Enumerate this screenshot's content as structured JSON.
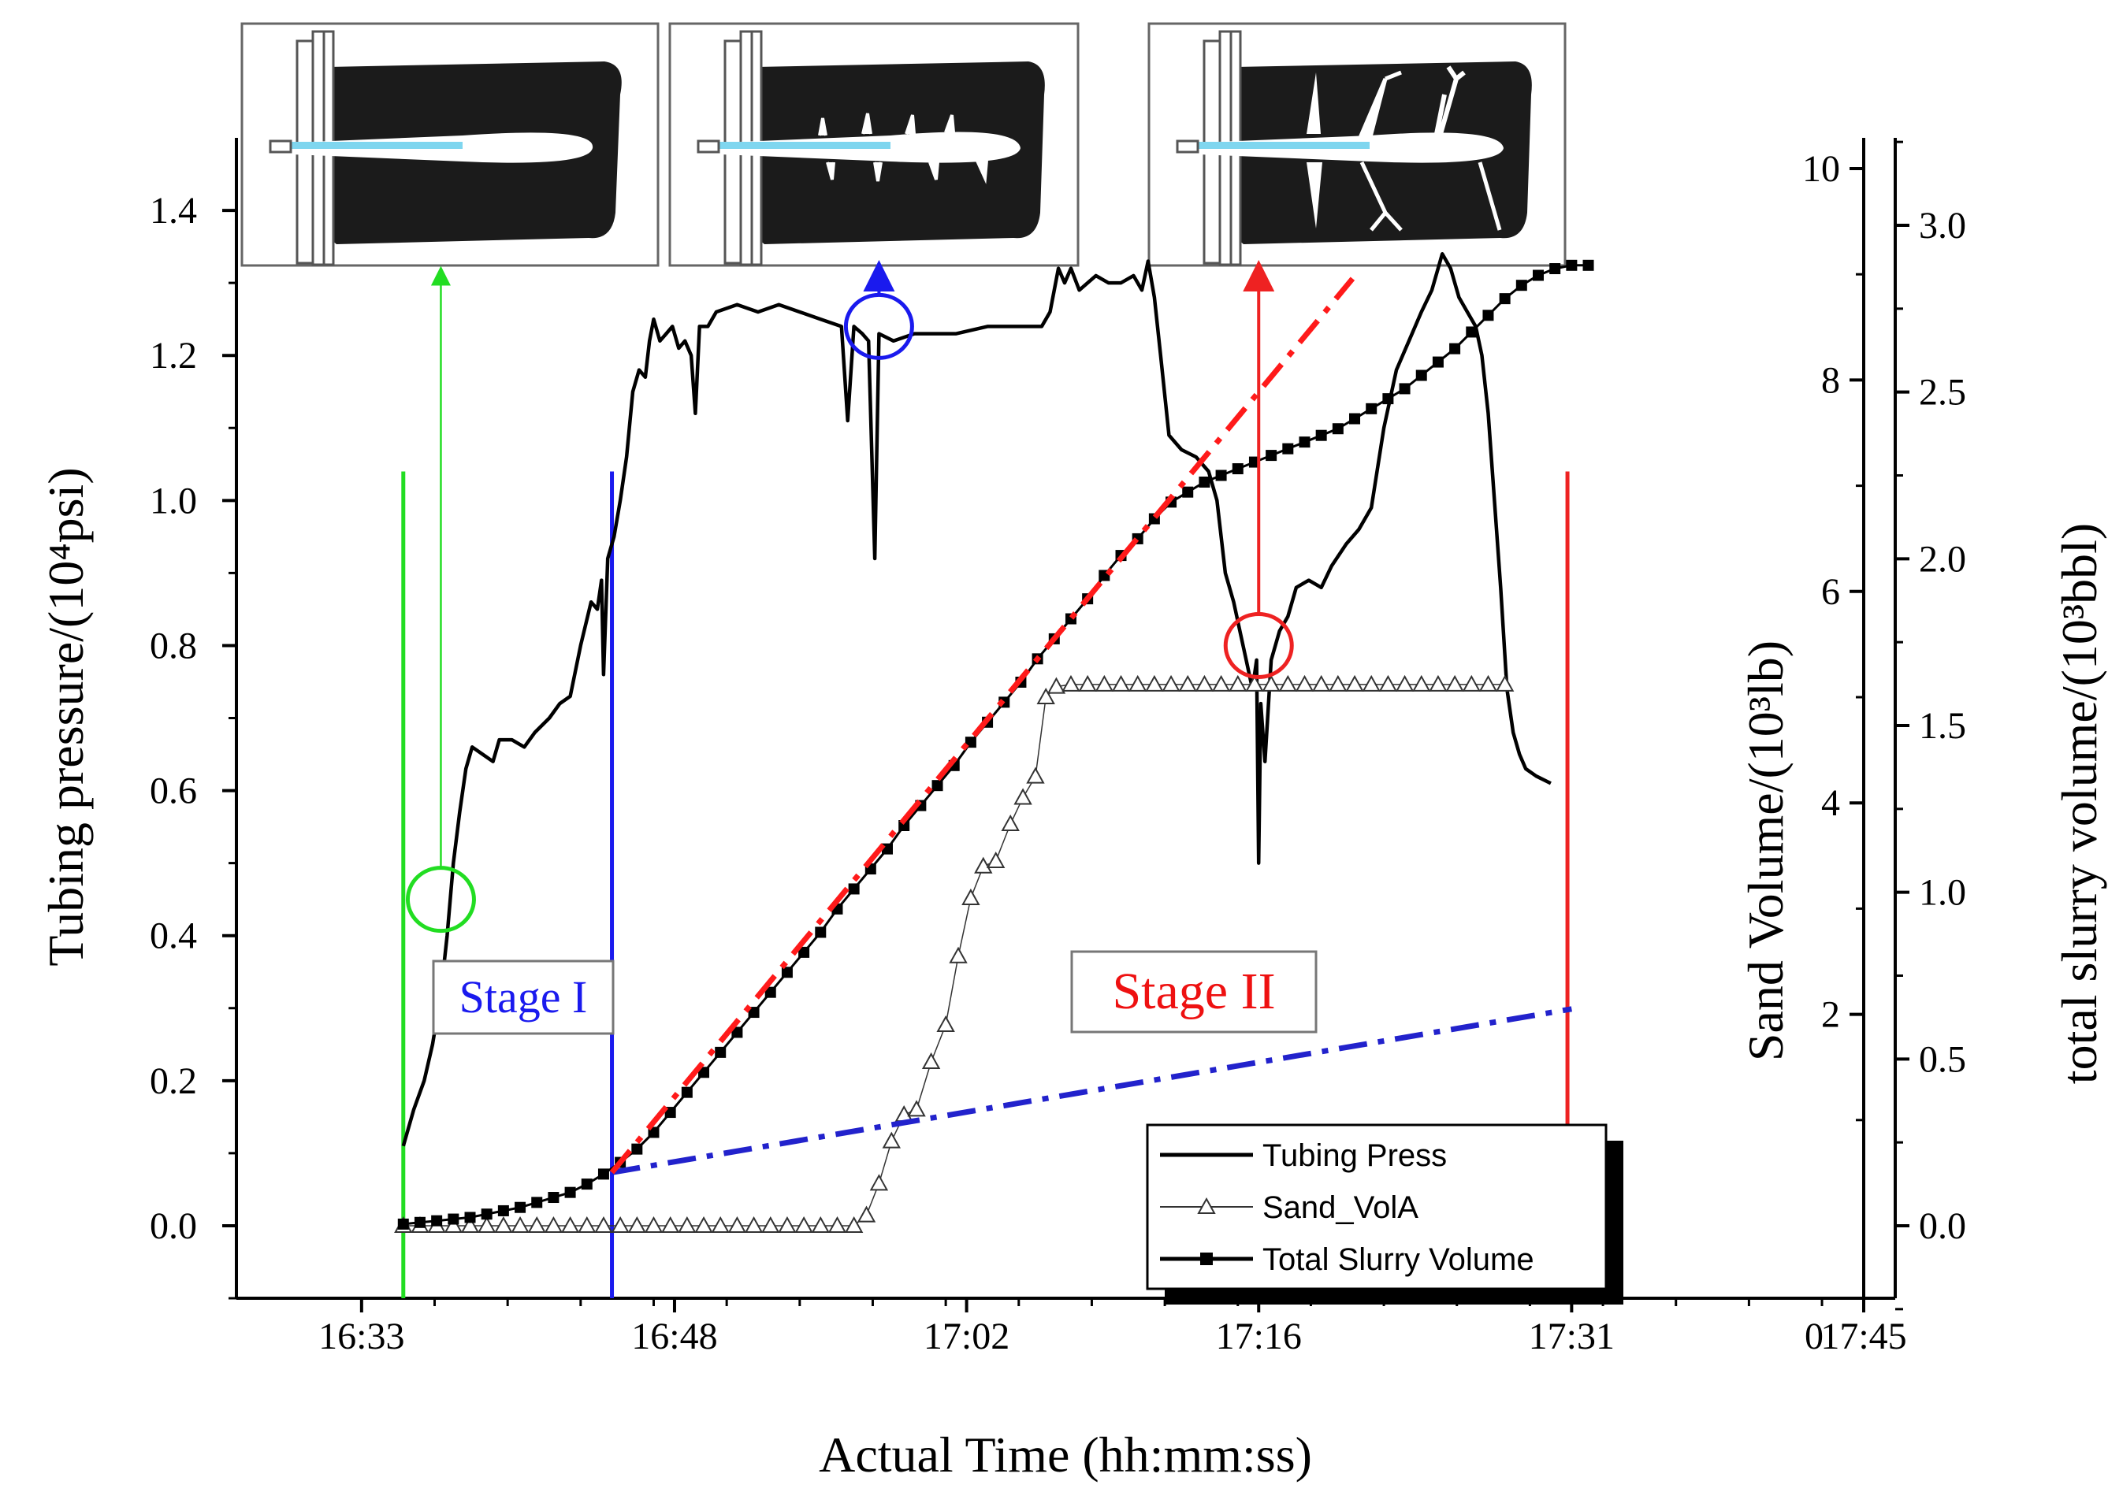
{
  "chart_data": {
    "type": "line",
    "title": "",
    "xlabel": "Actual Time (hh:mm:ss)",
    "ylabel_left": "Tubing pressure/(10⁴psi)",
    "ylabel_right_1": "Sand Volume/(10³lb)",
    "ylabel_right_2": "total slurry volume/(10³bbl)",
    "x_range_minutes": [
      1039,
      1065
    ],
    "x_ticks": [
      {
        "label": "16:33",
        "minute": 993
      },
      {
        "label": "16:48",
        "minute": 1008
      },
      {
        "label": "17:02",
        "minute": 1022
      },
      {
        "label": "17:16",
        "minute": 1036
      },
      {
        "label": "17:31",
        "minute": 1051
      },
      {
        "label": "17:45",
        "minute": 1065
      }
    ],
    "x_origin_label": "0",
    "ylim_left": [
      -0.1,
      1.5
    ],
    "yticks_left": [
      "0.0",
      "0.2",
      "0.4",
      "0.6",
      "0.8",
      "1.0",
      "1.2",
      "1.4"
    ],
    "ylim_sand": [
      0,
      10
    ],
    "yticks_sand": [
      "2",
      "4",
      "6",
      "8",
      "10"
    ],
    "ylim_slurry": [
      -0.15,
      3.25
    ],
    "yticks_slurry": [
      "0.0",
      "0.5",
      "1.0",
      "1.5",
      "2.0",
      "2.5",
      "3.0"
    ],
    "legend": {
      "position": "bottom-right",
      "entries": [
        "Tubing Press",
        "Sand_VolA",
        "Total Slurry Volume"
      ]
    },
    "series": [
      {
        "name": "Tubing Press",
        "axis": "left",
        "color": "#000000",
        "points": [
          [
            995,
            0.11
          ],
          [
            995.5,
            0.16
          ],
          [
            996,
            0.2
          ],
          [
            996.4,
            0.25
          ],
          [
            996.8,
            0.32
          ],
          [
            997.1,
            0.4
          ],
          [
            997.4,
            0.5
          ],
          [
            997.7,
            0.57
          ],
          [
            998.0,
            0.63
          ],
          [
            998.3,
            0.66
          ],
          [
            998.8,
            0.65
          ],
          [
            999.3,
            0.64
          ],
          [
            999.6,
            0.67
          ],
          [
            1000.2,
            0.67
          ],
          [
            1000.8,
            0.66
          ],
          [
            1001.3,
            0.68
          ],
          [
            1002,
            0.7
          ],
          [
            1002.5,
            0.72
          ],
          [
            1003,
            0.73
          ],
          [
            1003.5,
            0.8
          ],
          [
            1004,
            0.86
          ],
          [
            1004.3,
            0.85
          ],
          [
            1004.5,
            0.89
          ],
          [
            1004.6,
            0.76
          ],
          [
            1004.8,
            0.92
          ],
          [
            1005.1,
            0.95
          ],
          [
            1005.4,
            1.0
          ],
          [
            1005.7,
            1.06
          ],
          [
            1006.0,
            1.15
          ],
          [
            1006.3,
            1.18
          ],
          [
            1006.6,
            1.17
          ],
          [
            1006.8,
            1.22
          ],
          [
            1007.0,
            1.25
          ],
          [
            1007.3,
            1.22
          ],
          [
            1007.6,
            1.23
          ],
          [
            1007.9,
            1.24
          ],
          [
            1008.2,
            1.21
          ],
          [
            1008.5,
            1.22
          ],
          [
            1008.8,
            1.2
          ],
          [
            1009.0,
            1.12
          ],
          [
            1009.2,
            1.24
          ],
          [
            1009.6,
            1.24
          ],
          [
            1010,
            1.26
          ],
          [
            1011,
            1.27
          ],
          [
            1012,
            1.26
          ],
          [
            1013,
            1.27
          ],
          [
            1014,
            1.26
          ],
          [
            1015,
            1.25
          ],
          [
            1016,
            1.24
          ],
          [
            1016.3,
            1.11
          ],
          [
            1016.6,
            1.24
          ],
          [
            1017,
            1.23
          ],
          [
            1017.3,
            1.22
          ],
          [
            1017.6,
            0.92
          ],
          [
            1017.8,
            1.23
          ],
          [
            1018.5,
            1.22
          ],
          [
            1019.5,
            1.23
          ],
          [
            1020.5,
            1.23
          ],
          [
            1021.5,
            1.23
          ],
          [
            1023,
            1.24
          ],
          [
            1024.5,
            1.24
          ],
          [
            1025.6,
            1.24
          ],
          [
            1026.0,
            1.26
          ],
          [
            1026.4,
            1.32
          ],
          [
            1026.7,
            1.3
          ],
          [
            1027.0,
            1.32
          ],
          [
            1027.4,
            1.29
          ],
          [
            1027.8,
            1.3
          ],
          [
            1028.2,
            1.31
          ],
          [
            1028.8,
            1.3
          ],
          [
            1029.4,
            1.3
          ],
          [
            1030.0,
            1.31
          ],
          [
            1030.4,
            1.29
          ],
          [
            1030.7,
            1.33
          ],
          [
            1031.0,
            1.28
          ],
          [
            1031.3,
            1.2
          ],
          [
            1031.7,
            1.09
          ],
          [
            1032.3,
            1.07
          ],
          [
            1033,
            1.06
          ],
          [
            1033.6,
            1.04
          ],
          [
            1034.0,
            1.0
          ],
          [
            1034.4,
            0.9
          ],
          [
            1034.8,
            0.86
          ],
          [
            1035.1,
            0.82
          ],
          [
            1035.4,
            0.78
          ],
          [
            1035.7,
            0.74
          ],
          [
            1035.9,
            0.78
          ],
          [
            1036.0,
            0.5
          ],
          [
            1036.1,
            0.72
          ],
          [
            1036.3,
            0.64
          ],
          [
            1036.6,
            0.78
          ],
          [
            1037,
            0.82
          ],
          [
            1037.4,
            0.84
          ],
          [
            1037.8,
            0.88
          ],
          [
            1038.4,
            0.89
          ],
          [
            1039.0,
            0.88
          ],
          [
            1039.5,
            0.91
          ],
          [
            1040.2,
            0.94
          ],
          [
            1040.8,
            0.96
          ],
          [
            1041.4,
            0.99
          ],
          [
            1042.0,
            1.1
          ],
          [
            1042.6,
            1.18
          ],
          [
            1043.2,
            1.22
          ],
          [
            1043.8,
            1.26
          ],
          [
            1044.3,
            1.29
          ],
          [
            1044.8,
            1.34
          ],
          [
            1045.2,
            1.32
          ],
          [
            1045.6,
            1.28
          ],
          [
            1046.0,
            1.26
          ],
          [
            1046.4,
            1.24
          ],
          [
            1046.7,
            1.2
          ],
          [
            1047.0,
            1.12
          ],
          [
            1047.3,
            1.0
          ],
          [
            1047.6,
            0.88
          ],
          [
            1047.9,
            0.74
          ],
          [
            1048.2,
            0.68
          ],
          [
            1048.5,
            0.65
          ],
          [
            1048.8,
            0.63
          ],
          [
            1049.3,
            0.62
          ],
          [
            1050,
            0.61
          ]
        ]
      },
      {
        "name": "Sand_VolA",
        "axis": "sand",
        "color": "#333333",
        "points": [
          [
            995,
            0
          ],
          [
            995.8,
            0
          ],
          [
            996.6,
            0
          ],
          [
            997.4,
            0
          ],
          [
            998.2,
            0
          ],
          [
            999,
            0
          ],
          [
            999.8,
            0
          ],
          [
            1000.6,
            0
          ],
          [
            1001.4,
            0
          ],
          [
            1002.2,
            0
          ],
          [
            1003,
            0
          ],
          [
            1003.8,
            0
          ],
          [
            1004.6,
            0
          ],
          [
            1005.4,
            0
          ],
          [
            1006.2,
            0
          ],
          [
            1007,
            0
          ],
          [
            1007.8,
            0
          ],
          [
            1008.6,
            0
          ],
          [
            1009.4,
            0
          ],
          [
            1010.2,
            0
          ],
          [
            1011,
            0
          ],
          [
            1011.8,
            0
          ],
          [
            1012.6,
            0
          ],
          [
            1013.4,
            0
          ],
          [
            1014.2,
            0
          ],
          [
            1015,
            0
          ],
          [
            1015.8,
            0
          ],
          [
            1016.6,
            0
          ],
          [
            1017.2,
            0.1
          ],
          [
            1017.8,
            0.4
          ],
          [
            1018.4,
            0.8
          ],
          [
            1019.0,
            1.05
          ],
          [
            1019.6,
            1.1
          ],
          [
            1020.3,
            1.55
          ],
          [
            1021.0,
            1.9
          ],
          [
            1021.6,
            2.55
          ],
          [
            1022.2,
            3.1
          ],
          [
            1022.8,
            3.4
          ],
          [
            1023.4,
            3.45
          ],
          [
            1024.1,
            3.8
          ],
          [
            1024.7,
            4.05
          ],
          [
            1025.3,
            4.25
          ],
          [
            1025.8,
            5.0
          ],
          [
            1026.3,
            5.1
          ],
          [
            1027.0,
            5.12
          ],
          [
            1027.8,
            5.12
          ],
          [
            1028.6,
            5.12
          ],
          [
            1029.4,
            5.12
          ],
          [
            1030.2,
            5.12
          ],
          [
            1031,
            5.12
          ],
          [
            1031.8,
            5.12
          ],
          [
            1032.6,
            5.12
          ],
          [
            1033.4,
            5.12
          ],
          [
            1034.2,
            5.12
          ],
          [
            1035,
            5.12
          ],
          [
            1035.8,
            5.12
          ],
          [
            1036.6,
            5.12
          ],
          [
            1037.4,
            5.12
          ],
          [
            1038.2,
            5.12
          ],
          [
            1039,
            5.12
          ],
          [
            1039.8,
            5.12
          ],
          [
            1040.6,
            5.12
          ],
          [
            1041.4,
            5.12
          ],
          [
            1042.2,
            5.12
          ],
          [
            1043,
            5.12
          ],
          [
            1043.8,
            5.12
          ],
          [
            1044.6,
            5.12
          ],
          [
            1045.4,
            5.12
          ],
          [
            1046.2,
            5.12
          ],
          [
            1047,
            5.12
          ],
          [
            1047.8,
            5.12
          ]
        ]
      },
      {
        "name": "Total Slurry Volume",
        "axis": "slurry",
        "color": "#000000",
        "points": [
          [
            995,
            0.005
          ],
          [
            995.8,
            0.01
          ],
          [
            996.6,
            0.015
          ],
          [
            997.4,
            0.02
          ],
          [
            998.2,
            0.025
          ],
          [
            999,
            0.035
          ],
          [
            999.8,
            0.045
          ],
          [
            1000.6,
            0.055
          ],
          [
            1001.4,
            0.07
          ],
          [
            1002.2,
            0.085
          ],
          [
            1003,
            0.1
          ],
          [
            1003.8,
            0.125
          ],
          [
            1004.6,
            0.155
          ],
          [
            1005.4,
            0.19
          ],
          [
            1006.2,
            0.23
          ],
          [
            1007,
            0.28
          ],
          [
            1007.8,
            0.34
          ],
          [
            1008.6,
            0.4
          ],
          [
            1009.4,
            0.46
          ],
          [
            1010.2,
            0.52
          ],
          [
            1011,
            0.58
          ],
          [
            1011.8,
            0.64
          ],
          [
            1012.6,
            0.7
          ],
          [
            1013.4,
            0.76
          ],
          [
            1014.2,
            0.82
          ],
          [
            1015,
            0.88
          ],
          [
            1015.8,
            0.95
          ],
          [
            1016.6,
            1.01
          ],
          [
            1017.4,
            1.07
          ],
          [
            1018.2,
            1.13
          ],
          [
            1019,
            1.2
          ],
          [
            1019.8,
            1.26
          ],
          [
            1020.6,
            1.32
          ],
          [
            1021.4,
            1.38
          ],
          [
            1022.2,
            1.45
          ],
          [
            1023,
            1.51
          ],
          [
            1023.8,
            1.57
          ],
          [
            1024.6,
            1.63
          ],
          [
            1025.4,
            1.7
          ],
          [
            1026.2,
            1.76
          ],
          [
            1027,
            1.82
          ],
          [
            1027.8,
            1.88
          ],
          [
            1028.6,
            1.95
          ],
          [
            1029.4,
            2.01
          ],
          [
            1030.2,
            2.06
          ],
          [
            1031,
            2.12
          ],
          [
            1031.8,
            2.17
          ],
          [
            1032.6,
            2.2
          ],
          [
            1033.4,
            2.23
          ],
          [
            1034.2,
            2.25
          ],
          [
            1035,
            2.27
          ],
          [
            1035.8,
            2.29
          ],
          [
            1036.6,
            2.31
          ],
          [
            1037.4,
            2.33
          ],
          [
            1038.2,
            2.35
          ],
          [
            1039,
            2.37
          ],
          [
            1039.8,
            2.39
          ],
          [
            1040.6,
            2.42
          ],
          [
            1041.4,
            2.45
          ],
          [
            1042.2,
            2.48
          ],
          [
            1043,
            2.51
          ],
          [
            1043.8,
            2.55
          ],
          [
            1044.6,
            2.59
          ],
          [
            1045.4,
            2.63
          ],
          [
            1046.2,
            2.68
          ],
          [
            1047,
            2.73
          ],
          [
            1047.8,
            2.78
          ],
          [
            1048.6,
            2.82
          ],
          [
            1049.4,
            2.85
          ],
          [
            1050.2,
            2.87
          ],
          [
            1051,
            2.88
          ],
          [
            1051.8,
            2.88
          ]
        ]
      },
      {
        "axis": "slurry",
        "color": "#2222cc",
        "style": "dash-dot",
        "points": [
          [
            1005,
            0.16
          ],
          [
            1051,
            0.65
          ]
        ]
      },
      {
        "axis": "slurry",
        "color": "#ff1a1a",
        "style": "dash-dot",
        "points": [
          [
            1005,
            0.16
          ],
          [
            1040.5,
            2.84
          ]
        ]
      }
    ],
    "vertical_markers": [
      {
        "minute": 995,
        "color": "#22dd22",
        "y_top": 1.04
      },
      {
        "minute": 1005,
        "color": "#1a1aee",
        "y_top": 1.04
      },
      {
        "minute": 1050.8,
        "color": "#ee2222",
        "y_top": 1.04
      }
    ],
    "annotations": [
      {
        "text": "Stage I",
        "color": "#1a1aee"
      },
      {
        "text": "Stage II",
        "color": "#ee1111"
      }
    ],
    "event_markers": [
      {
        "color": "#22dd22",
        "minute": 996.8,
        "y": 0.45
      },
      {
        "color": "#1a1aee",
        "minute": 1017.8,
        "y": 1.24
      },
      {
        "color": "#ee2222",
        "minute": 1036.0,
        "y": 0.8
      }
    ]
  }
}
